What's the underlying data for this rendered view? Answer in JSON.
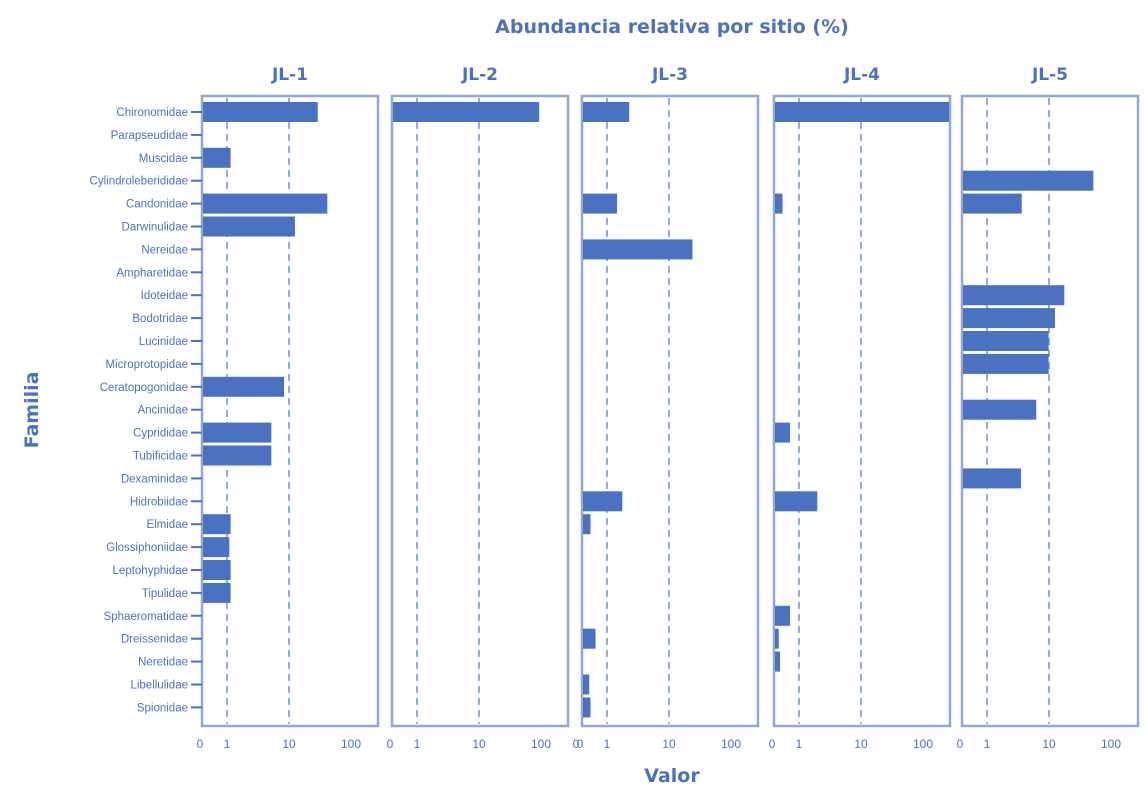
{
  "colors": {
    "bar": "#4a72c0",
    "frame": "#8ea8d8",
    "text": "#4a72c0",
    "guide": "#4a72c0"
  },
  "chart_data": {
    "type": "bar",
    "orientation": "horizontal",
    "title": "Abundancia relativa por sitio (%)",
    "xlabel": "Valor",
    "ylabel": "Familia",
    "x_scale": "log-like (0, 1, 10, 100/1000)",
    "grid": "dashed reference lines at 1 and 10",
    "categories": [
      "Chironomidae",
      "Parapseudidae",
      "Muscidae",
      "Cylindroleberididae",
      "Candonidae",
      "Darwinulidae",
      "Nereidae",
      "Ampharetidae",
      "Idoteidae",
      "Bodotridae",
      "Lucinidae",
      "Microprotopidae",
      "Ceratopogonidae",
      "Ancinidae",
      "Cyprididae",
      "Tubificidae",
      "Dexaminidae",
      "Hidrobiidae",
      "Elmidae",
      "Glossiphoniidae",
      "Leptohyphidae",
      "Tipulidae",
      "Sphaeromatidae",
      "Dreissenidae",
      "Neretidae",
      "Libellulidae",
      "Spionidae"
    ],
    "panels": [
      {
        "name": "JL-1",
        "xmax": 100,
        "ticks": [
          "0",
          "1",
          "10",
          "100"
        ],
        "values": [
          28,
          0,
          1.1,
          0,
          40,
          12,
          0,
          0,
          0,
          0,
          0,
          0,
          8,
          0,
          5,
          5,
          0,
          0,
          1.1,
          1.05,
          1.1,
          1.1,
          0,
          0,
          0,
          0,
          0
        ]
      },
      {
        "name": "JL-2",
        "xmax": 1000,
        "ticks": [
          "0",
          "1",
          "10",
          "100",
          "0"
        ],
        "values": [
          90,
          0,
          0,
          0,
          0,
          0,
          0,
          0,
          0,
          0,
          0,
          0,
          0,
          0,
          0,
          0,
          0,
          0,
          0,
          0,
          0,
          0,
          0,
          0,
          0,
          0,
          0
        ]
      },
      {
        "name": "JL-3",
        "xmax": 100,
        "ticks": [
          "0",
          "1",
          "10",
          "100"
        ],
        "values": [
          2.2,
          0,
          0,
          0,
          1.4,
          0,
          23,
          0,
          0,
          0,
          0,
          0,
          0,
          0,
          0,
          0,
          0,
          1.7,
          0.3,
          0,
          0,
          0,
          0,
          0.5,
          0,
          0.25,
          0.3
        ]
      },
      {
        "name": "JL-4",
        "xmax": 1000,
        "ticks": [
          "0",
          "1",
          "10",
          "100"
        ],
        "values": [
          400,
          0,
          0,
          0,
          0.3,
          0,
          0,
          0,
          0,
          0,
          0,
          0,
          0,
          0,
          0.6,
          0,
          0,
          1.9,
          0,
          0,
          0,
          0,
          0.6,
          0.15,
          0.2,
          0,
          0
        ]
      },
      {
        "name": "JL-5",
        "xmax": 100,
        "ticks": [
          "0",
          "1",
          "10",
          "100"
        ],
        "values": [
          0,
          0,
          0,
          50,
          3.5,
          0,
          0,
          0,
          17,
          12,
          9.5,
          9.5,
          0,
          6,
          0,
          0,
          3.4,
          0,
          0,
          0,
          0,
          0,
          0,
          0,
          0,
          0,
          0
        ]
      }
    ]
  }
}
